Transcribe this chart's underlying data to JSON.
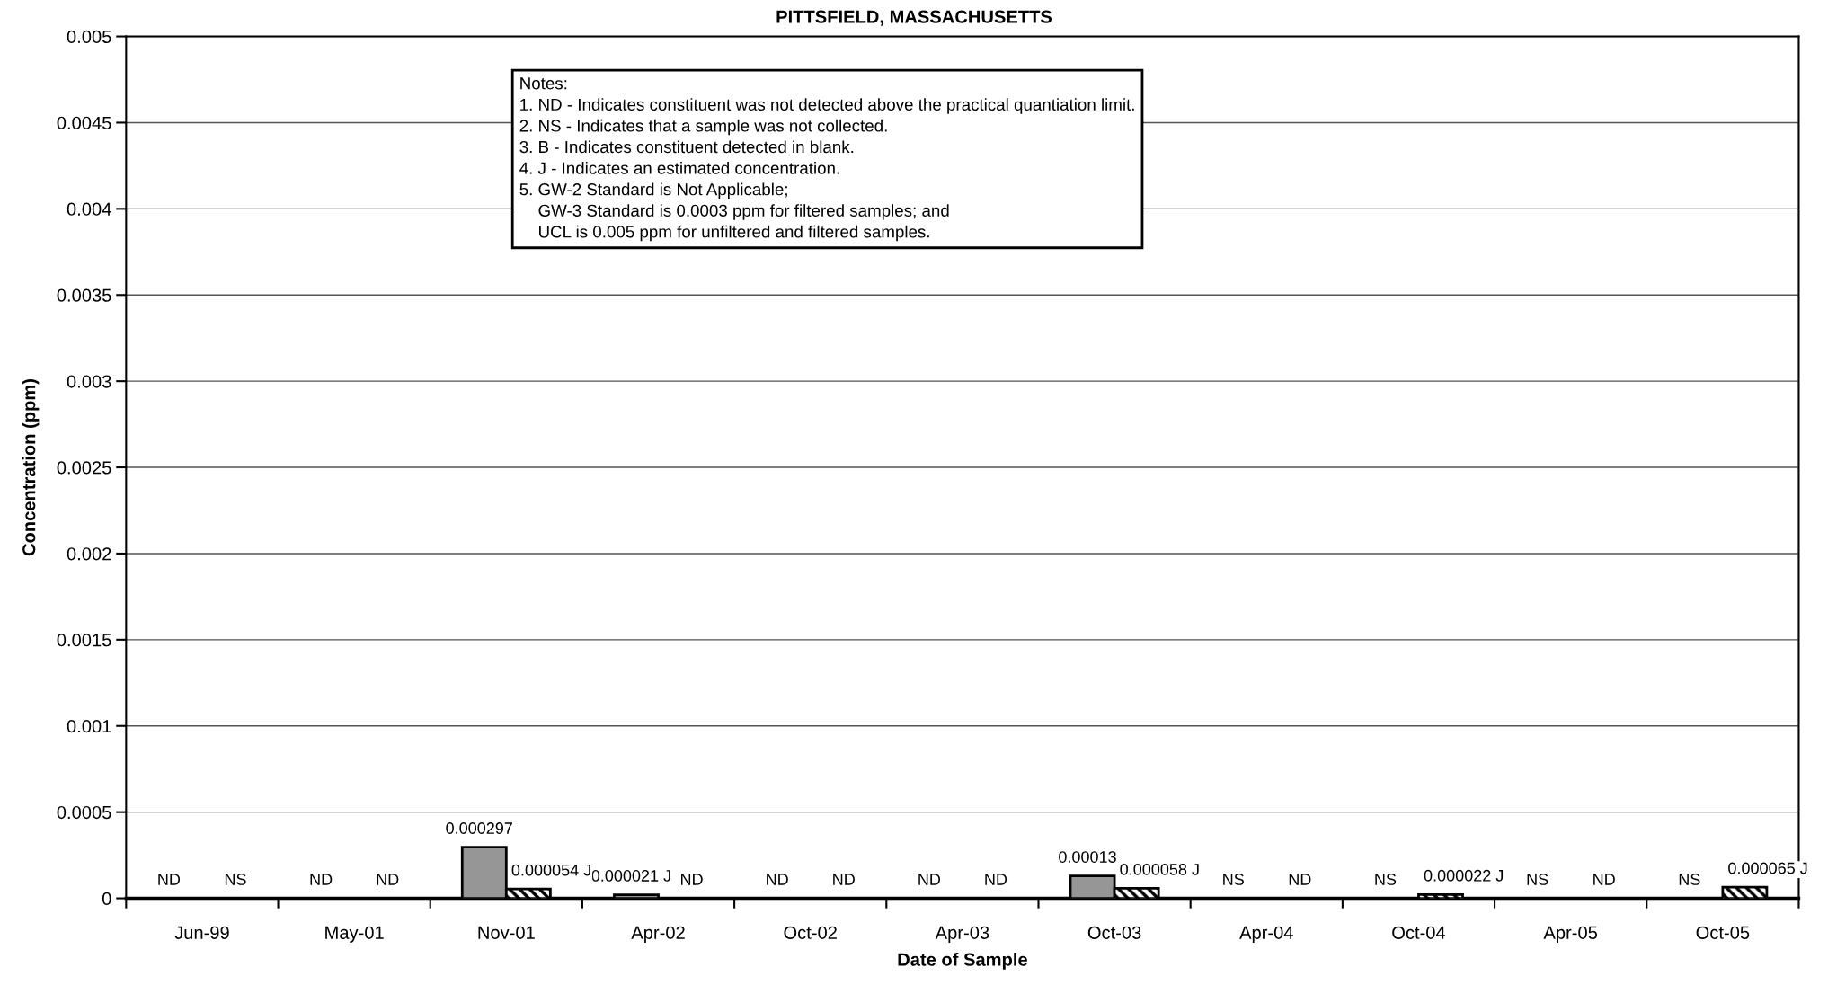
{
  "chart_data": {
    "type": "bar",
    "title": "PITTSFIELD, MASSACHUSETTS",
    "xlabel": "Date of Sample",
    "ylabel": "Concentration (ppm)",
    "categories": [
      "Jun-99",
      "May-01",
      "Nov-01",
      "Apr-02",
      "Oct-02",
      "Apr-03",
      "Oct-03",
      "Apr-04",
      "Oct-04",
      "Apr-05",
      "Oct-05"
    ],
    "series": [
      {
        "color": "#969696",
        "values": [
          null,
          null,
          0.000297,
          2.1e-05,
          null,
          null,
          0.00013,
          null,
          null,
          null,
          null
        ],
        "value_labels": [
          "ND",
          "ND",
          "0.000297",
          "0.000021 J",
          "ND",
          "ND",
          "0.00013",
          "NS",
          "NS",
          "NS",
          "NS"
        ]
      },
      {
        "color": "#000000",
        "values": [
          null,
          null,
          5.4e-05,
          null,
          null,
          null,
          5.8e-05,
          null,
          2.2e-05,
          null,
          6.5e-05
        ],
        "value_labels": [
          "NS",
          "ND",
          "0.000054 J",
          "ND",
          "ND",
          "ND",
          "0.000058 J",
          "ND",
          "0.000022 J",
          "ND",
          "0.000065 J"
        ]
      }
    ],
    "ylim": [
      0,
      0.005
    ],
    "yticks": [
      0,
      0.0005,
      0.001,
      0.0015,
      0.002,
      0.0025,
      0.003,
      0.0035,
      0.004,
      0.0045,
      0.005
    ],
    "grid": "y",
    "annotations": [
      "Notes:\n1. ND - Indicates constituent was not detected above the practical quantiation limit.\n2. NS - Indicates that a sample was not collected.\n3. B - Indicates constituent detected in blank.\n4. J - Indicates an estimated concentration.\n5. GW-2 Standard is Not Applicable;\n    GW-3 Standard is 0.0003 ppm for filtered samples; and\n    UCL is 0.005 ppm for unfiltered and filtered samples."
    ]
  }
}
